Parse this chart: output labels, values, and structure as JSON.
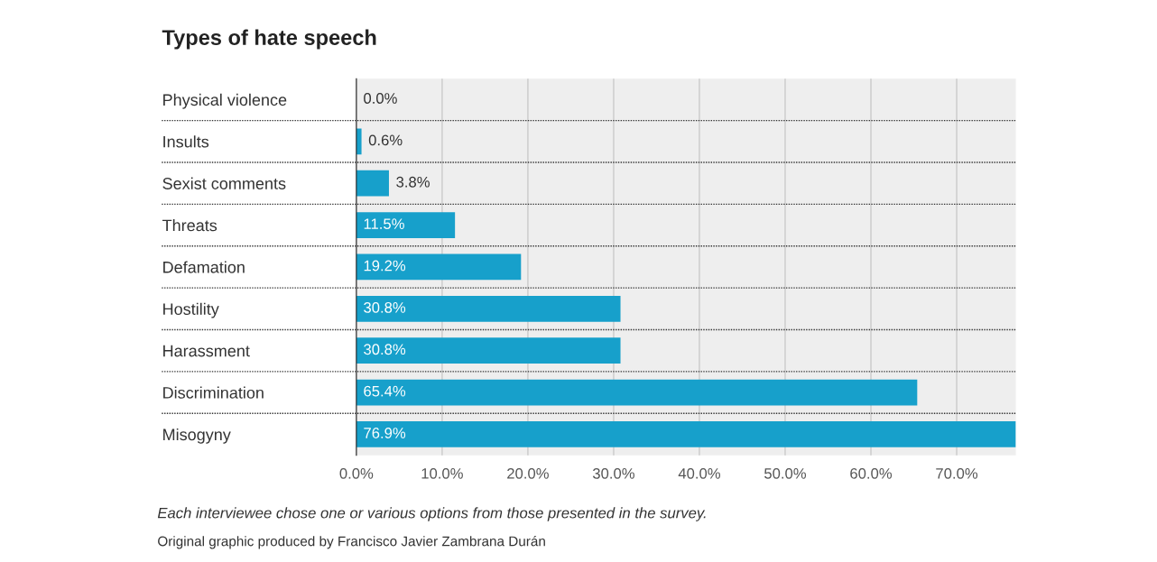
{
  "chart_data": {
    "type": "bar",
    "orientation": "horizontal",
    "title": "Types of hate speech",
    "categories": [
      "Physical violence",
      "Insults",
      "Sexist comments",
      "Threats",
      "Defamation",
      "Hostility",
      "Harassment",
      "Discrimination",
      "Misogyny"
    ],
    "values": [
      0.0,
      0.6,
      3.8,
      11.5,
      19.2,
      30.8,
      30.8,
      65.4,
      76.9
    ],
    "value_labels": [
      "0.0%",
      "0.6%",
      "3.8%",
      "11.5%",
      "19.2%",
      "30.8%",
      "30.8%",
      "65.4%",
      "76.9%"
    ],
    "color": "#17a0cb",
    "xlim": [
      0,
      76.9
    ],
    "xticks": [
      {
        "value": 0,
        "label": "0.0%"
      },
      {
        "value": 10,
        "label": "10.0%"
      },
      {
        "value": 20,
        "label": "20.0%"
      },
      {
        "value": 30,
        "label": "30.0%"
      },
      {
        "value": 40,
        "label": "40.0%"
      },
      {
        "value": 50,
        "label": "50.0%"
      },
      {
        "value": 60,
        "label": "60.0%"
      },
      {
        "value": 70,
        "label": "70.0%"
      }
    ],
    "grid": "x",
    "legend": false,
    "annotations": [
      "Each interviewee chose one or various options from those presented in the survey.",
      "Original graphic produced by Francisco Javier Zambrana Durán"
    ]
  }
}
